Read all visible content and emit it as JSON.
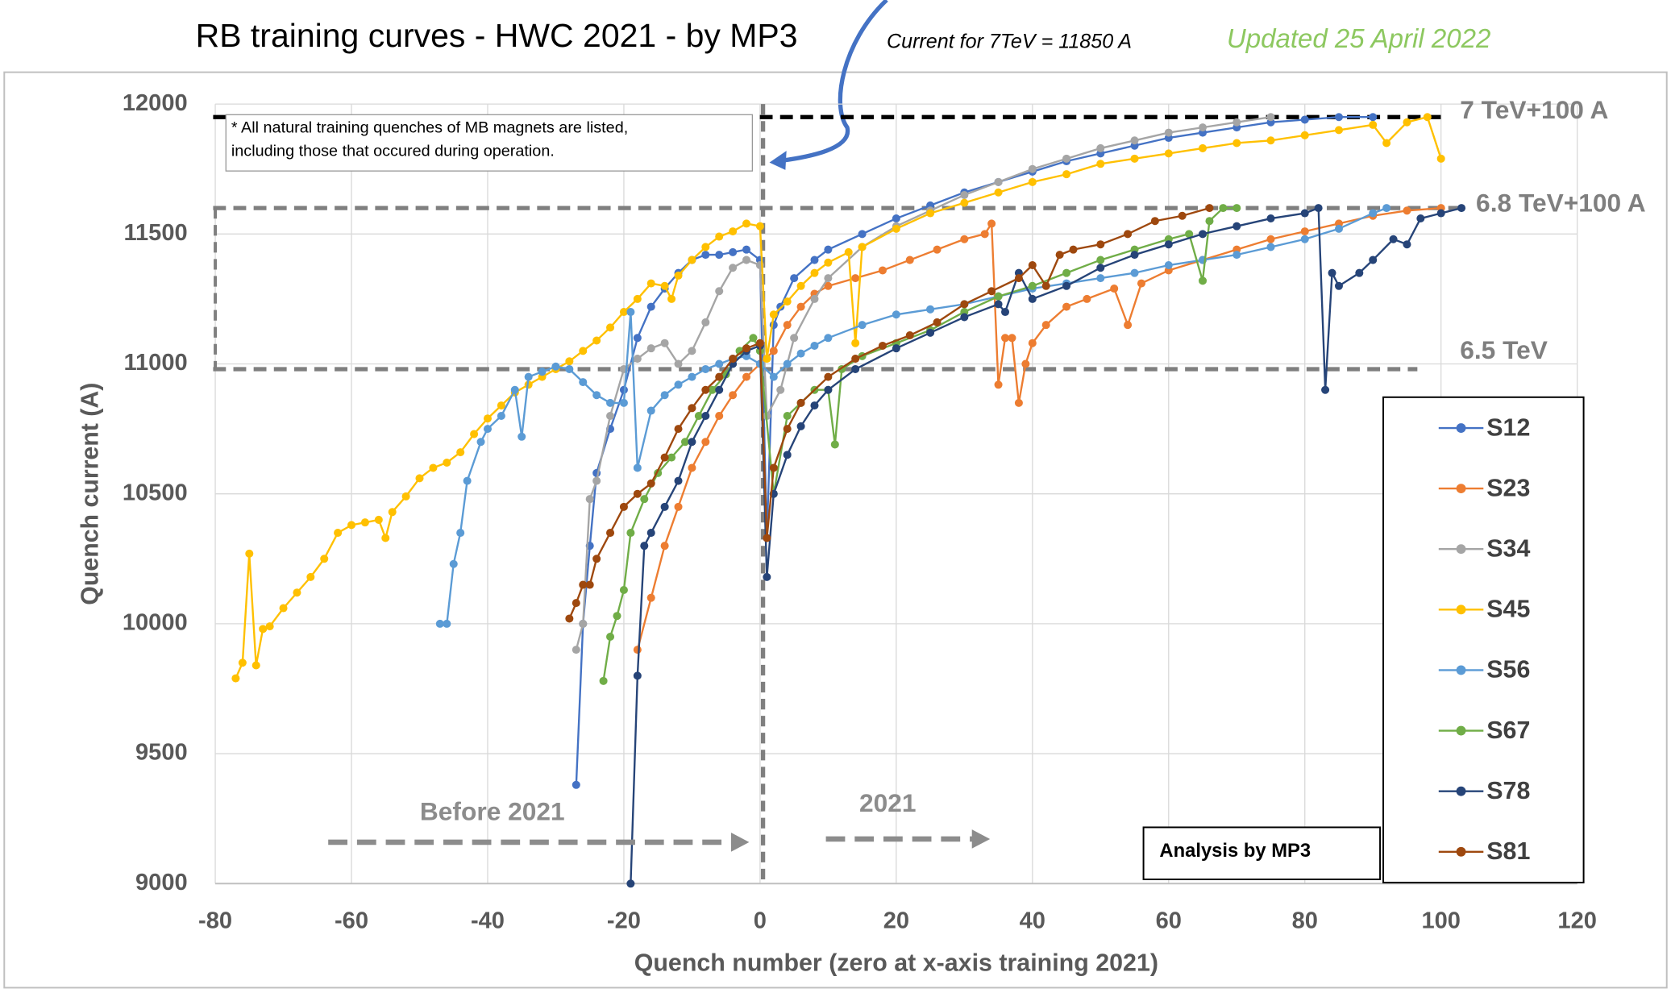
{
  "chart_data": {
    "type": "line",
    "title": "RB training curves - HWC 2021 - by MP3",
    "subtitle": "Current for 7TeV = 11850 A",
    "update_note": "Updated 25 April 2022",
    "note_lines": [
      "* All natural training quenches of MB magnets are listed,",
      "including those  that occured during operation."
    ],
    "x_label": "Quench number (zero at x-axis training 2021)",
    "y_label": "Quench current (A)",
    "xlim": [
      -80,
      120
    ],
    "xticks": [
      -80,
      -60,
      -40,
      -20,
      0,
      20,
      40,
      60,
      80,
      100,
      120
    ],
    "ylim": [
      9000,
      12000
    ],
    "yticks": [
      9000,
      9500,
      10000,
      10500,
      11000,
      11500,
      12000
    ],
    "grid": true,
    "legend": "right",
    "reference_lines": [
      {
        "label": "7 TeV+100 A",
        "value": 11950
      },
      {
        "label": "6.8 TeV+100 A",
        "value": 11600
      },
      {
        "label": "6.5 TeV",
        "value": 10980
      }
    ],
    "annotations": [
      "Before 2021",
      "2021",
      "Analysis by MP3"
    ],
    "series": [
      {
        "name": "S12",
        "color": "#4472c4",
        "x": [
          -27,
          -26,
          -25,
          -24,
          -22,
          -20,
          -18,
          -16,
          -14,
          -12,
          -10,
          -8,
          -6,
          -4,
          -2,
          0,
          1,
          2,
          3,
          5,
          8,
          10,
          15,
          20,
          25,
          30,
          35,
          40,
          45,
          50,
          55,
          60,
          65,
          70,
          75,
          80,
          85,
          90
        ],
        "values": [
          9380,
          10000,
          10300,
          10580,
          10750,
          10900,
          11100,
          11220,
          11290,
          11350,
          11400,
          11420,
          11420,
          11430,
          11440,
          11400,
          10330,
          11150,
          11220,
          11330,
          11400,
          11440,
          11500,
          11560,
          11610,
          11660,
          11700,
          11740,
          11780,
          11810,
          11840,
          11870,
          11890,
          11910,
          11930,
          11940,
          11950,
          11950
        ]
      },
      {
        "name": "S23",
        "color": "#ed7d31",
        "x": [
          -18,
          -16,
          -14,
          -12,
          -10,
          -8,
          -6,
          -4,
          -2,
          0,
          2,
          4,
          6,
          8,
          10,
          14,
          18,
          22,
          26,
          30,
          33,
          34,
          35,
          36,
          37,
          38,
          39,
          40,
          42,
          45,
          48,
          52,
          54,
          56,
          60,
          65,
          70,
          75,
          80,
          85,
          90,
          95,
          100
        ],
        "values": [
          9900,
          10100,
          10300,
          10450,
          10600,
          10700,
          10800,
          10880,
          10950,
          11000,
          11050,
          11150,
          11220,
          11270,
          11300,
          11330,
          11360,
          11400,
          11440,
          11480,
          11500,
          11540,
          10920,
          11100,
          11100,
          10850,
          11000,
          11080,
          11150,
          11220,
          11250,
          11290,
          11150,
          11310,
          11360,
          11400,
          11440,
          11480,
          11510,
          11540,
          11570,
          11590,
          11600
        ]
      },
      {
        "name": "S34",
        "color": "#a5a5a5",
        "x": [
          -27,
          -26,
          -25,
          -24,
          -22,
          -20,
          -18,
          -16,
          -14,
          -12,
          -10,
          -8,
          -6,
          -4,
          -2,
          0,
          1,
          3,
          5,
          8,
          10,
          15,
          20,
          25,
          30,
          35,
          40,
          45,
          50,
          55,
          60,
          65,
          70,
          75
        ],
        "values": [
          9900,
          10000,
          10480,
          10550,
          10800,
          10980,
          11020,
          11060,
          11080,
          11000,
          11050,
          11160,
          11280,
          11370,
          11400,
          11380,
          10800,
          10900,
          11100,
          11250,
          11330,
          11450,
          11530,
          11590,
          11650,
          11700,
          11750,
          11790,
          11830,
          11860,
          11890,
          11910,
          11930,
          11950
        ]
      },
      {
        "name": "S45",
        "color": "#ffc000",
        "x": [
          -77,
          -76,
          -75,
          -74,
          -73,
          -72,
          -70,
          -68,
          -66,
          -64,
          -62,
          -60,
          -58,
          -56,
          -55,
          -54,
          -52,
          -50,
          -48,
          -46,
          -44,
          -42,
          -40,
          -38,
          -36,
          -34,
          -32,
          -30,
          -28,
          -26,
          -24,
          -22,
          -20,
          -18,
          -16,
          -14,
          -13,
          -12,
          -10,
          -8,
          -6,
          -4,
          -2,
          0,
          1,
          2,
          4,
          6,
          8,
          10,
          13,
          14,
          15,
          20,
          25,
          30,
          35,
          40,
          45,
          50,
          55,
          60,
          65,
          70,
          75,
          80,
          85,
          90,
          92,
          95,
          98,
          100
        ],
        "values": [
          9790,
          9850,
          10270,
          9840,
          9980,
          9990,
          10060,
          10120,
          10180,
          10250,
          10350,
          10380,
          10390,
          10400,
          10330,
          10430,
          10490,
          10560,
          10600,
          10620,
          10660,
          10730,
          10790,
          10840,
          10890,
          10920,
          10950,
          10980,
          11010,
          11050,
          11090,
          11140,
          11200,
          11250,
          11310,
          11300,
          11250,
          11340,
          11400,
          11450,
          11490,
          11510,
          11540,
          11530,
          11020,
          11190,
          11240,
          11300,
          11350,
          11390,
          11430,
          11080,
          11450,
          11520,
          11580,
          11620,
          11660,
          11700,
          11730,
          11770,
          11790,
          11810,
          11830,
          11850,
          11860,
          11880,
          11900,
          11920,
          11850,
          11930,
          11950,
          11790
        ]
      },
      {
        "name": "S56",
        "color": "#5b9bd5",
        "x": [
          -47,
          -46,
          -45,
          -44,
          -43,
          -41,
          -40,
          -38,
          -36,
          -35,
          -34,
          -32,
          -30,
          -28,
          -26,
          -24,
          -22,
          -20,
          -19,
          -18,
          -16,
          -14,
          -12,
          -10,
          -8,
          -6,
          -4,
          -2,
          0,
          2,
          4,
          6,
          8,
          10,
          15,
          20,
          25,
          30,
          35,
          40,
          45,
          50,
          55,
          60,
          65,
          70,
          75,
          80,
          85,
          90,
          92
        ],
        "values": [
          10000,
          10000,
          10230,
          10350,
          10550,
          10700,
          10750,
          10800,
          10900,
          10720,
          10950,
          10970,
          10990,
          10980,
          10930,
          10880,
          10850,
          10850,
          11200,
          10600,
          10820,
          10880,
          10920,
          10950,
          10980,
          11000,
          11020,
          11030,
          11000,
          10950,
          11000,
          11040,
          11070,
          11100,
          11150,
          11190,
          11210,
          11230,
          11260,
          11290,
          11310,
          11330,
          11350,
          11380,
          11400,
          11420,
          11450,
          11480,
          11520,
          11580,
          11600
        ]
      },
      {
        "name": "S67",
        "color": "#70ad47",
        "x": [
          -23,
          -22,
          -21,
          -20,
          -19,
          -17,
          -15,
          -13,
          -11,
          -9,
          -7,
          -5,
          -3,
          -1,
          0,
          2,
          4,
          6,
          8,
          10,
          11,
          12,
          15,
          20,
          25,
          30,
          35,
          40,
          45,
          50,
          55,
          60,
          63,
          65,
          66,
          68,
          70
        ],
        "values": [
          9780,
          9950,
          10030,
          10130,
          10350,
          10480,
          10580,
          10640,
          10700,
          10800,
          10900,
          10960,
          11050,
          11100,
          11050,
          10500,
          10800,
          10850,
          10900,
          10900,
          10690,
          10980,
          11030,
          11080,
          11130,
          11200,
          11260,
          11300,
          11350,
          11400,
          11440,
          11480,
          11500,
          11320,
          11550,
          11600,
          11600
        ]
      },
      {
        "name": "S78",
        "color": "#264478",
        "x": [
          -19,
          -18,
          -17,
          -16,
          -14,
          -12,
          -10,
          -8,
          -6,
          -4,
          -2,
          0,
          1,
          2,
          4,
          6,
          8,
          10,
          14,
          20,
          25,
          30,
          35,
          36,
          38,
          40,
          45,
          50,
          55,
          60,
          65,
          70,
          75,
          80,
          82,
          83,
          84,
          85,
          88,
          90,
          93,
          95,
          97,
          100,
          103
        ],
        "values": [
          9000,
          9800,
          10300,
          10350,
          10450,
          10550,
          10700,
          10800,
          10900,
          11000,
          11050,
          11070,
          10180,
          10500,
          10650,
          10760,
          10840,
          10900,
          10980,
          11060,
          11120,
          11180,
          11230,
          11200,
          11350,
          11250,
          11300,
          11370,
          11420,
          11460,
          11500,
          11530,
          11560,
          11580,
          11600,
          10900,
          11350,
          11300,
          11350,
          11400,
          11480,
          11460,
          11560,
          11580,
          11600
        ]
      },
      {
        "name": "S81",
        "color": "#9e480e",
        "x": [
          -28,
          -27,
          -26,
          -25,
          -24,
          -22,
          -20,
          -18,
          -16,
          -14,
          -12,
          -10,
          -8,
          -6,
          -4,
          -2,
          0,
          1,
          2,
          4,
          6,
          10,
          14,
          18,
          22,
          26,
          30,
          34,
          38,
          40,
          42,
          44,
          46,
          50,
          54,
          58,
          62,
          66
        ],
        "values": [
          10020,
          10080,
          10150,
          10150,
          10250,
          10350,
          10450,
          10500,
          10540,
          10640,
          10750,
          10830,
          10900,
          10950,
          11020,
          11060,
          11080,
          10330,
          10600,
          10750,
          10850,
          10950,
          11020,
          11070,
          11110,
          11160,
          11230,
          11280,
          11330,
          11380,
          11300,
          11420,
          11440,
          11460,
          11500,
          11550,
          11570,
          11600
        ]
      }
    ]
  }
}
